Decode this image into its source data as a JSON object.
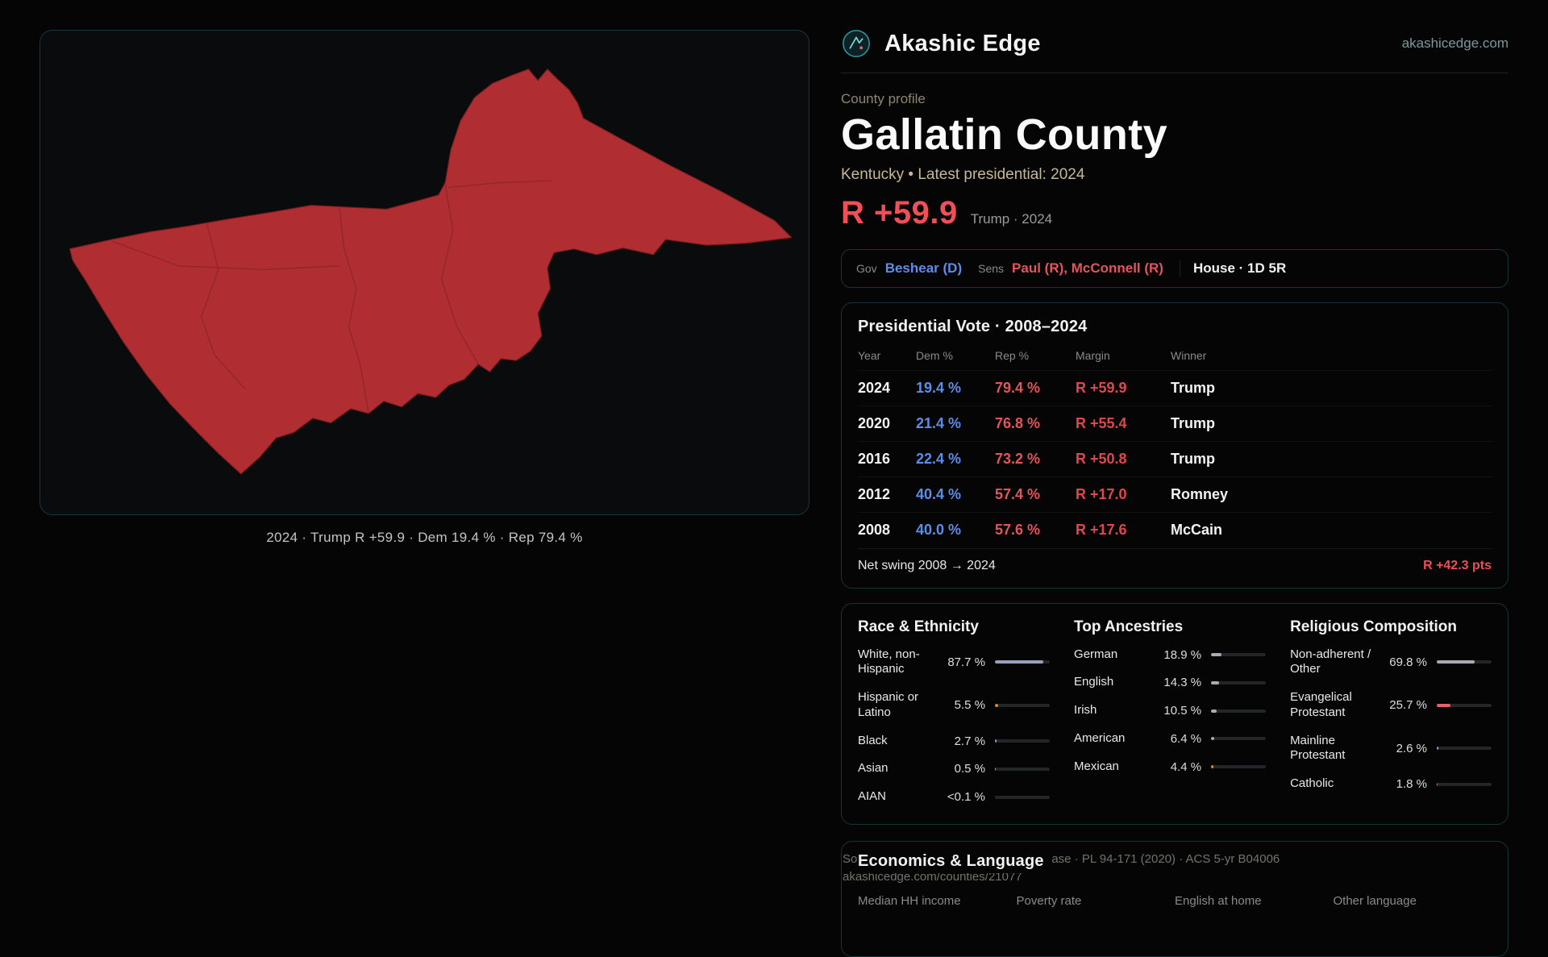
{
  "brand": {
    "name": "Akashic Edge",
    "domain": "akashicedge.com"
  },
  "profile": {
    "kicker": "County profile",
    "title": "Gallatin County",
    "subtitle": "Kentucky • Latest presidential: 2024",
    "margin_value": "R +59.9",
    "margin_context": "Trump · 2024"
  },
  "officials": {
    "gov_label": "Gov",
    "gov_value": "Beshear (D)",
    "sens_label": "Sens",
    "sens_value": "Paul (R), McConnell (R)",
    "house_value": "House · 1D 5R"
  },
  "map": {
    "caption": "2024 · Trump R +59.9 · Dem 19.4 % · Rep 79.4 %",
    "fill": "#b02e31"
  },
  "colors": {
    "dem_blue": "#5d8de8",
    "rep_red": "#e2565a",
    "margin_red": "#f04f57",
    "tan": "#c7b894",
    "accent_border": "#14343a"
  },
  "presidential_vote": {
    "title": "Presidential Vote · 2008–2024",
    "columns": [
      "Year",
      "Dem %",
      "Rep %",
      "Margin",
      "Winner"
    ],
    "rows": [
      {
        "year": "2024",
        "dem": "19.4 %",
        "rep": "79.4 %",
        "margin": "R +59.9",
        "winner": "Trump"
      },
      {
        "year": "2020",
        "dem": "21.4 %",
        "rep": "76.8 %",
        "margin": "R +55.4",
        "winner": "Trump"
      },
      {
        "year": "2016",
        "dem": "22.4 %",
        "rep": "73.2 %",
        "margin": "R +50.8",
        "winner": "Trump"
      },
      {
        "year": "2012",
        "dem": "40.4 %",
        "rep": "57.4 %",
        "margin": "R +17.0",
        "winner": "Romney"
      },
      {
        "year": "2008",
        "dem": "40.0 %",
        "rep": "57.6 %",
        "margin": "R +17.6",
        "winner": "McCain"
      }
    ],
    "footer_label": "Net swing 2008 → 2024",
    "footer_value": "R +42.3 pts"
  },
  "demographics": {
    "race": {
      "title": "Race & Ethnicity",
      "rows": [
        {
          "label": "White, non-Hispanic",
          "value": "87.7 %",
          "pct": 87.7,
          "color": "#97a1bb"
        },
        {
          "label": "Hispanic or Latino",
          "value": "5.5 %",
          "pct": 5.5,
          "color": "#d18a3e"
        },
        {
          "label": "Black",
          "value": "2.7 %",
          "pct": 2.7,
          "color": "#7ea2e6"
        },
        {
          "label": "Asian",
          "value": "0.5 %",
          "pct": 0.5,
          "color": "#a7abb3"
        },
        {
          "label": "AIAN",
          "value": "<0.1 %",
          "pct": 0.1,
          "color": "#a7abb3"
        }
      ]
    },
    "ancestries": {
      "title": "Top Ancestries",
      "rows": [
        {
          "label": "German",
          "value": "18.9 %",
          "pct": 18.9,
          "color": "#a7abb3"
        },
        {
          "label": "English",
          "value": "14.3 %",
          "pct": 14.3,
          "color": "#a7abb3"
        },
        {
          "label": "Irish",
          "value": "10.5 %",
          "pct": 10.5,
          "color": "#a7abb3"
        },
        {
          "label": "American",
          "value": "6.4 %",
          "pct": 6.4,
          "color": "#a7abb3"
        },
        {
          "label": "Mexican",
          "value": "4.4 %",
          "pct": 4.4,
          "color": "#d18a3e"
        }
      ]
    },
    "religion": {
      "title": "Religious Composition",
      "rows": [
        {
          "label": "Non-adherent / Other",
          "value": "69.8 %",
          "pct": 69.8,
          "color": "#a7abb3"
        },
        {
          "label": "Evangelical Protestant",
          "value": "25.7 %",
          "pct": 25.7,
          "color": "#e2646a"
        },
        {
          "label": "Mainline Protestant",
          "value": "2.6 %",
          "pct": 2.6,
          "color": "#6f9fe8"
        },
        {
          "label": "Catholic",
          "value": "1.8 %",
          "pct": 1.8,
          "color": "#d18a3e"
        }
      ]
    }
  },
  "economics": {
    "title": "Economics & Language",
    "columns": [
      "Median HH income",
      "Poverty rate",
      "English at home",
      "Other language"
    ]
  },
  "sources": {
    "line1": "Sources: Akashic Edge elections database · PL 94-171 (2020) · ACS 5-yr B04006",
    "line2": "akashicedge.com/counties/21077"
  }
}
